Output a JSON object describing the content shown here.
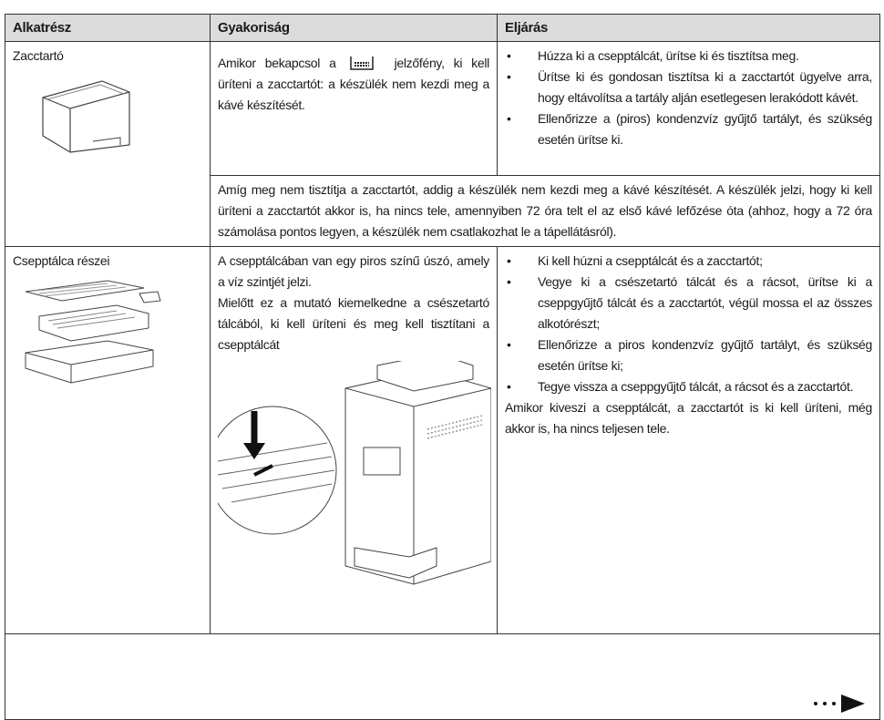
{
  "header": [
    "Alkatrész",
    "Gyakoriság",
    "Eljárás"
  ],
  "rows": [
    {
      "part": "Zacctartó",
      "frequency_before": "Amikor bekapcsol a",
      "frequency_after": "jelzőfény, ki kell üríteni a zacctartót: a készülék nem kezdi meg a kávé készítését.",
      "procedure": [
        "Húzza ki a csepptálcát, ürítse ki és tisztítsa meg.",
        "Ürítse ki és gondosan tisztítsa ki a zacctartót ügyelve arra, hogy eltávolítsa a tartály alján esetlegesen lerakódott kávét.",
        "Ellenőrizze a (piros) kondenzvíz gyűjtő tartályt, és szükség esetén ürítse ki."
      ],
      "note": "Amíg meg nem tisztítja a zacctartót, addig a készülék nem kezdi meg a kávé készítését. A készülék jelzi, hogy ki kell üríteni a zacctartót akkor is, ha nincs tele, amennyiben 72 óra telt el az első kávé lefőzése óta (ahhoz, hogy a 72 óra számolása pontos legyen, a készülék nem csatlakozhat le a tápellátásról)."
    },
    {
      "part": "Csepptálca részei",
      "frequency": [
        "A csepptálcában van egy piros színű úszó, amely a víz szintjét jelzi.",
        "Mielőtt ez a mutató kiemelkedne a csészetartó tálcából, ki kell üríteni és meg kell tisztítani a csepptálcát"
      ],
      "procedure": [
        "Ki kell húzni a csepptálcát és a zacctartót;",
        "Vegye ki a csészetartó tálcát és a rácsot, ürítse ki a cseppgyűjtő tálcát és a zacctartót, végül mossa el az összes alkotórészt;",
        "Ellenőrizze a piros kondenzvíz gyűjtő tartályt, és szükség esetén ürítse ki;",
        "Tegye vissza a cseppgyűjtő tálcát, a rácsot és a zacctartót."
      ],
      "procedure_note": "Amikor kiveszi a csepptálcát, a zacctartót is ki kell üríteni, még akkor is, ha nincs teljesen tele."
    }
  ]
}
